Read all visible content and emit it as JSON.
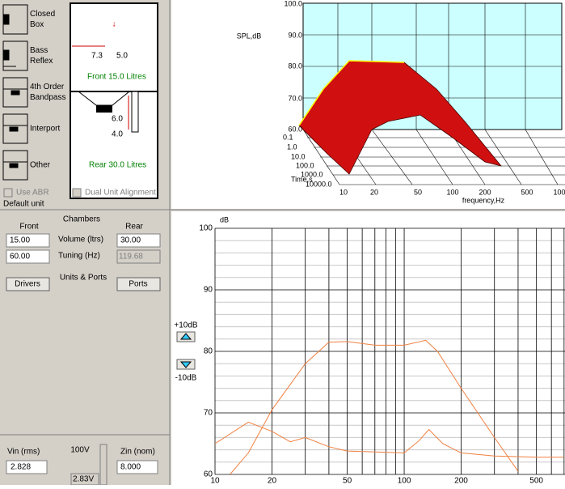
{
  "enclosures": [
    {
      "label": [
        "Closed",
        "Box"
      ]
    },
    {
      "label": [
        "Bass",
        "Reflex"
      ]
    },
    {
      "label": [
        "4th Order",
        "Bandpass"
      ]
    },
    {
      "label": [
        "Interport"
      ]
    },
    {
      "label": [
        "Other"
      ]
    }
  ],
  "options": {
    "use_abr": "Use ABR",
    "dual_unit": "Dual Unit Alignment",
    "default_unit": "Default unit"
  },
  "diagram": {
    "arrow": "↓",
    "width": "7.3",
    "height": "5.0",
    "front": "Front  15.0 Litres",
    "dim_a": "6.0",
    "dim_b": "4.0",
    "rear": "Rear  30.0 Litres"
  },
  "chambers": {
    "front_header": "Front",
    "title": "Chambers",
    "rear_header": "Rear",
    "volume_front": "15.00",
    "volume_label": "Volume (ltrs)",
    "volume_rear": "30.00",
    "tuning_front": "60.00",
    "tuning_label": "Tuning (Hz)",
    "tuning_rear": "119.68",
    "drivers": "Drivers",
    "units_ports": "Units & Ports",
    "ports": "Ports"
  },
  "level": {
    "up": "+10dB",
    "down": "-10dB"
  },
  "input": {
    "vin_label": "Vin (rms)",
    "vin": "2.828",
    "v100": "100V",
    "v283": "2.83V",
    "zin_label": "Zin (nom)",
    "zin": "8.000"
  },
  "surface": {
    "z_label": "SPL,dB",
    "z_ticks": [
      "100.0",
      "90.0",
      "80.0",
      "70.0",
      "60.0"
    ],
    "t_label": "Time,s",
    "t_ticks": [
      "0.1",
      "1.0",
      "10.0",
      "100.0",
      "1000.0",
      "10000.0"
    ],
    "f_label": "frequency,Hz",
    "f_ticks": [
      "10",
      "20",
      "50",
      "100",
      "200",
      "500",
      "100"
    ]
  },
  "response_chart": {
    "type": "line",
    "y_label": "dB",
    "log_x": true,
    "xlim": [
      10,
      708
    ],
    "ylim": [
      60,
      100
    ],
    "xticks": [
      10,
      20,
      50,
      100,
      200,
      500
    ],
    "xgrid": [
      30,
      40,
      60,
      70,
      80,
      90,
      300,
      400,
      600,
      700
    ],
    "yticks": [
      60,
      70,
      80,
      90,
      100
    ],
    "ygrid": [
      62,
      64,
      66,
      68,
      72,
      74,
      76,
      78,
      82,
      84,
      86,
      88,
      92,
      94,
      96,
      98
    ],
    "series": [
      {
        "color": "#f08040",
        "x": [
          12,
          15,
          20,
          30,
          40,
          50,
          70,
          100,
          130,
          150,
          200,
          300,
          400
        ],
        "values": [
          60,
          63.5,
          70.5,
          78,
          81.5,
          81.6,
          81,
          81,
          81.8,
          80,
          74,
          66,
          60.5
        ]
      },
      {
        "color": "#f08040",
        "x": [
          10,
          15,
          20,
          25,
          30,
          40,
          50,
          100,
          120,
          135,
          160,
          200,
          300,
          500,
          700
        ],
        "values": [
          65,
          68.5,
          67,
          65.3,
          66,
          64.5,
          63.8,
          63.5,
          65.5,
          67.3,
          65,
          63.5,
          63,
          62.8,
          62.8
        ]
      }
    ]
  }
}
